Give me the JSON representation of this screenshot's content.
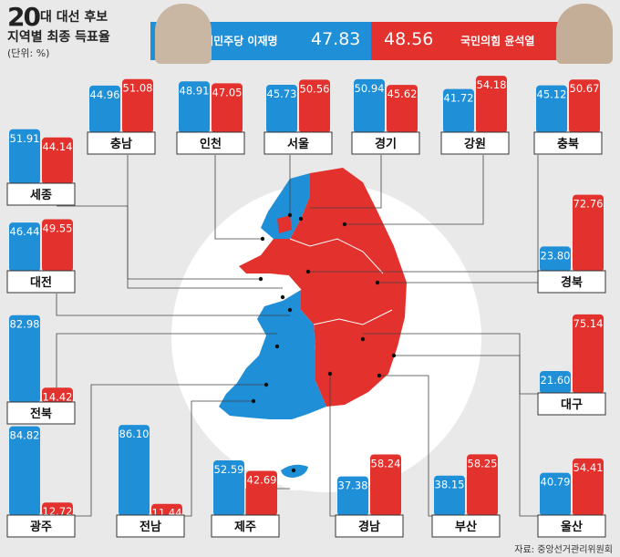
{
  "header": {
    "title_num": "20",
    "title_line1": "대 대선 후보",
    "title_line2": "지역별 최종 득표율",
    "unit": "(단위: %)",
    "candidate_left": {
      "name": "더불어민주당 이재명",
      "pct": "47.83"
    },
    "candidate_right": {
      "name": "국민의힘 윤석열",
      "pct": "48.56"
    }
  },
  "colors": {
    "blue": "#1f8fd8",
    "red": "#e3312d",
    "circle": "#ffffff"
  },
  "source": "자료: 중앙선거관리위원회",
  "chart_data": {
    "type": "bar",
    "series": [
      {
        "name": "더불어민주당 이재명",
        "color": "#1f8fd8"
      },
      {
        "name": "국민의힘 윤석열",
        "color": "#e3312d"
      }
    ],
    "ylim": [
      0,
      100
    ],
    "regions": [
      {
        "name": "충남",
        "values": [
          44.96,
          51.08
        ]
      },
      {
        "name": "인천",
        "values": [
          48.91,
          47.05
        ]
      },
      {
        "name": "서울",
        "values": [
          45.73,
          50.56
        ]
      },
      {
        "name": "경기",
        "values": [
          50.94,
          45.62
        ]
      },
      {
        "name": "강원",
        "values": [
          41.72,
          54.18
        ]
      },
      {
        "name": "충북",
        "values": [
          45.12,
          50.67
        ]
      },
      {
        "name": "세종",
        "values": [
          51.91,
          44.14
        ]
      },
      {
        "name": "대전",
        "values": [
          46.44,
          49.55
        ]
      },
      {
        "name": "경북",
        "values": [
          23.8,
          72.76
        ]
      },
      {
        "name": "전북",
        "values": [
          82.98,
          14.42
        ]
      },
      {
        "name": "대구",
        "values": [
          21.6,
          75.14
        ]
      },
      {
        "name": "광주",
        "values": [
          84.82,
          12.72
        ]
      },
      {
        "name": "전남",
        "values": [
          86.1,
          11.44
        ]
      },
      {
        "name": "제주",
        "values": [
          52.59,
          42.69
        ]
      },
      {
        "name": "경남",
        "values": [
          37.38,
          58.24
        ]
      },
      {
        "name": "부산",
        "values": [
          38.15,
          58.25
        ]
      },
      {
        "name": "울산",
        "values": [
          40.79,
          54.41
        ]
      }
    ]
  }
}
